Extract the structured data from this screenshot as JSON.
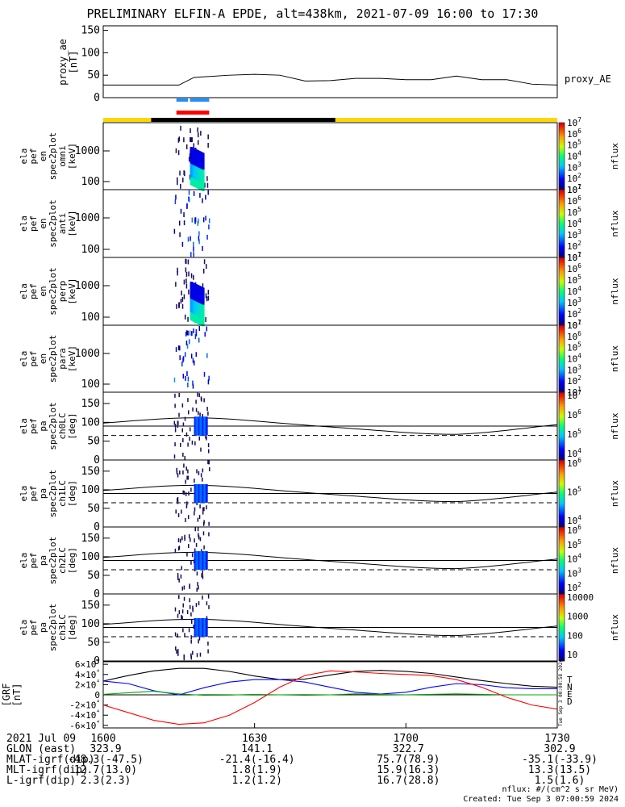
{
  "title": "PRELIMINARY ELFIN-A EPDE, alt=438km, 2021-07-09 16:00 to 17:30",
  "chart_data": [
    {
      "type": "line",
      "panel": "proxy_ae",
      "ylabel_lines": [
        "proxy_ae",
        "[nT]"
      ],
      "legend_label": "proxy_AE",
      "ylim": [
        0,
        160
      ],
      "yticks": [
        0,
        50,
        100,
        150
      ],
      "x_minutes": [
        0,
        10,
        15,
        18,
        25,
        30,
        35,
        40,
        45,
        50,
        55,
        60,
        65,
        70,
        75,
        80,
        85,
        90
      ],
      "values": [
        28,
        28,
        28,
        45,
        50,
        52,
        50,
        37,
        38,
        43,
        43,
        40,
        40,
        48,
        40,
        40,
        30,
        28
      ]
    },
    {
      "type": "heatmap",
      "panel": "omni",
      "ylabel_lines": [
        "ela",
        "pef",
        "en",
        "spec2plot",
        "omni",
        "[keV]"
      ],
      "scale": "log",
      "yticks": [
        "100",
        "1000"
      ],
      "zlabel": "nflux",
      "ztick_exponents": [
        1,
        2,
        3,
        4,
        5,
        6,
        7
      ]
    },
    {
      "type": "heatmap",
      "panel": "anti",
      "ylabel_lines": [
        "ela",
        "pef",
        "en",
        "spec2plot",
        "anti",
        "[keV]"
      ],
      "scale": "log",
      "yticks": [
        "100",
        "1000"
      ],
      "zlabel": "nflux",
      "ztick_exponents": [
        1,
        2,
        3,
        4,
        5,
        6,
        7
      ]
    },
    {
      "type": "heatmap",
      "panel": "perp",
      "ylabel_lines": [
        "ela",
        "pef",
        "en",
        "spec2plot",
        "perp",
        "[keV]"
      ],
      "scale": "log",
      "yticks": [
        "100",
        "1000"
      ],
      "zlabel": "nflux",
      "ztick_exponents": [
        1,
        2,
        3,
        4,
        5,
        6,
        7
      ]
    },
    {
      "type": "heatmap",
      "panel": "para",
      "ylabel_lines": [
        "ela",
        "pef",
        "en",
        "spec2plot",
        "para",
        "[keV]"
      ],
      "scale": "log",
      "yticks": [
        "100",
        "1000"
      ],
      "zlabel": "nflux",
      "ztick_exponents": [
        1,
        2,
        3,
        4,
        5,
        6,
        7
      ]
    },
    {
      "type": "heatmap",
      "panel": "ch0LC",
      "ylabel_lines": [
        "ela",
        "pef",
        "pa",
        "spec2plot",
        "ch0LC",
        "[deg]"
      ],
      "ylim": [
        0,
        180
      ],
      "yticks": [
        0,
        50,
        100,
        150
      ],
      "zlabel": "nflux",
      "zticks": [
        "10^4",
        "10^5",
        "10^6",
        "10^7"
      ]
    },
    {
      "type": "heatmap",
      "panel": "ch1LC",
      "ylabel_lines": [
        "ela",
        "pef",
        "pa",
        "spec2plot",
        "ch1LC",
        "[deg]"
      ],
      "ylim": [
        0,
        180
      ],
      "yticks": [
        0,
        50,
        100,
        150
      ],
      "zlabel": "nflux",
      "zticks": [
        "10^4",
        "10^5",
        "10^6"
      ]
    },
    {
      "type": "heatmap",
      "panel": "ch2LC",
      "ylabel_lines": [
        "ela",
        "pef",
        "pa",
        "spec2plot",
        "ch2LC",
        "[deg]"
      ],
      "ylim": [
        0,
        180
      ],
      "yticks": [
        0,
        50,
        100,
        150
      ],
      "zlabel": "nflux",
      "zticks": [
        "10^2",
        "10^3",
        "10^4",
        "10^5",
        "10^6"
      ]
    },
    {
      "type": "heatmap",
      "panel": "ch3LC",
      "ylabel_lines": [
        "ela",
        "pef",
        "pa",
        "spec2plot",
        "ch3LC",
        "[deg]"
      ],
      "ylim": [
        0,
        180
      ],
      "yticks": [
        0,
        50,
        100,
        150
      ],
      "zlabel": "nflux",
      "zticks": [
        "10",
        "100",
        "1000",
        "10000"
      ]
    },
    {
      "type": "line",
      "panel": "GRF",
      "ylabel_lines": [
        "[GRF",
        "[nT]"
      ],
      "ylim": [
        -65000,
        65000
      ],
      "yticks": [
        "-6×10⁴",
        "-4×10⁴",
        "-2×10⁴",
        "0",
        "2×10⁴",
        "4×10⁴",
        "6×10⁴"
      ],
      "legend": [
        "T",
        "N",
        "E",
        "D"
      ],
      "x_minutes": [
        0,
        5,
        10,
        15,
        20,
        25,
        30,
        35,
        40,
        45,
        50,
        55,
        60,
        65,
        70,
        75,
        80,
        85,
        90
      ],
      "series": [
        {
          "name": "T",
          "color": "#000000",
          "values": [
            27000,
            38000,
            47000,
            52000,
            52000,
            46000,
            37000,
            30000,
            31000,
            39000,
            46000,
            48000,
            46000,
            42000,
            35000,
            28000,
            22000,
            17000,
            15000
          ]
        },
        {
          "name": "N",
          "color": "#0000ff",
          "values": [
            27000,
            22000,
            8000,
            0,
            14000,
            25000,
            30000,
            30000,
            25000,
            15000,
            5000,
            1500,
            5000,
            15000,
            22000,
            20000,
            14000,
            12000,
            12000
          ]
        },
        {
          "name": "E",
          "color": "#00aa00",
          "values": [
            1000,
            4000,
            7000,
            2000,
            -1000,
            -500,
            1000,
            0,
            -1000,
            0,
            2000,
            1000,
            0,
            1000,
            2000,
            1000,
            0,
            0,
            0
          ]
        },
        {
          "name": "D",
          "color": "#ff0000",
          "values": [
            -20000,
            -35000,
            -50000,
            -58000,
            -55000,
            -40000,
            -15000,
            15000,
            38000,
            47000,
            45000,
            42000,
            40000,
            38000,
            30000,
            15000,
            -5000,
            -20000,
            -28000
          ]
        }
      ]
    }
  ],
  "xaxis": {
    "date": "2021 Jul 09",
    "ticks": [
      "1600",
      "1630",
      "1700",
      "1730"
    ]
  },
  "orbit": [
    {
      "label": "GLON (east)",
      "values": [
        "323.9",
        "141.1",
        "322.7",
        "302.9"
      ]
    },
    {
      "label": "MLAT-igrf(dip)",
      "values": [
        "-48.3(-47.5)",
        "-21.4(-16.4)",
        "75.7(78.9)",
        "-35.1(-33.9)"
      ]
    },
    {
      "label": "MLT-igrf(dip)",
      "values": [
        "12.7(13.0)",
        "1.8(1.9)",
        "15.9(16.3)",
        "13.3(13.5)"
      ]
    },
    {
      "label": "L-igrf(dip)",
      "values": [
        "2.3(2.3)",
        "1.2(1.2)",
        "16.7(28.8)",
        "1.5(1.6)"
      ]
    }
  ],
  "footer": {
    "units": "nflux: #/(cm^2 s sr MeV)",
    "created": "Created: Tue Sep  3 07:00:59 2024",
    "side_stamp": "Tue Sep  3 00:00:58 2024"
  },
  "colors": {
    "sunlit_bar": "#ffd700",
    "eclipse_bar": "#000000",
    "science_zone_red": "#ff0000",
    "science_zone_blue": "#1e90ff"
  }
}
